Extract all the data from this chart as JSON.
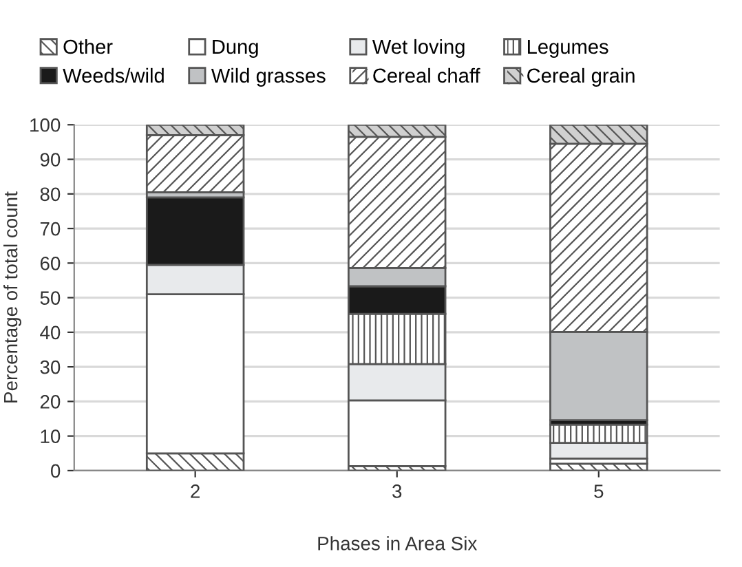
{
  "chart_data": {
    "type": "bar",
    "stacked": true,
    "xlabel": "Phases in Area Six",
    "ylabel": "Percentage of total count",
    "categories": [
      "2",
      "3",
      "5"
    ],
    "ylim": [
      0,
      100
    ],
    "yticks": [
      0,
      10,
      20,
      30,
      40,
      50,
      60,
      70,
      80,
      90,
      100
    ],
    "grid": "y",
    "legend": "top",
    "series": [
      {
        "name": "Other",
        "color": "#ffffff",
        "values": [
          5,
          1.3,
          2
        ]
      },
      {
        "name": "Dung",
        "color": "#ffffff",
        "values": [
          46,
          19,
          1.5
        ]
      },
      {
        "name": "Wet loving",
        "color": "#e8eaec",
        "values": [
          8.5,
          10.5,
          4.5
        ]
      },
      {
        "name": "Legumes",
        "color": "#ffffff",
        "values": [
          0,
          14.5,
          5.3
        ]
      },
      {
        "name": "Weeds/wild",
        "color": "#1a1a1a",
        "values": [
          19.5,
          8,
          1.3
        ]
      },
      {
        "name": "Wild grasses",
        "color": "#c0c2c4",
        "values": [
          1.5,
          5.3,
          25.5
        ]
      },
      {
        "name": "Cereal chaff",
        "color": "#ffffff",
        "values": [
          16.5,
          37.9,
          54.4
        ]
      },
      {
        "name": "Cereal grain",
        "color": "#d0d0d0",
        "values": [
          3,
          3.5,
          5.5
        ]
      }
    ]
  }
}
